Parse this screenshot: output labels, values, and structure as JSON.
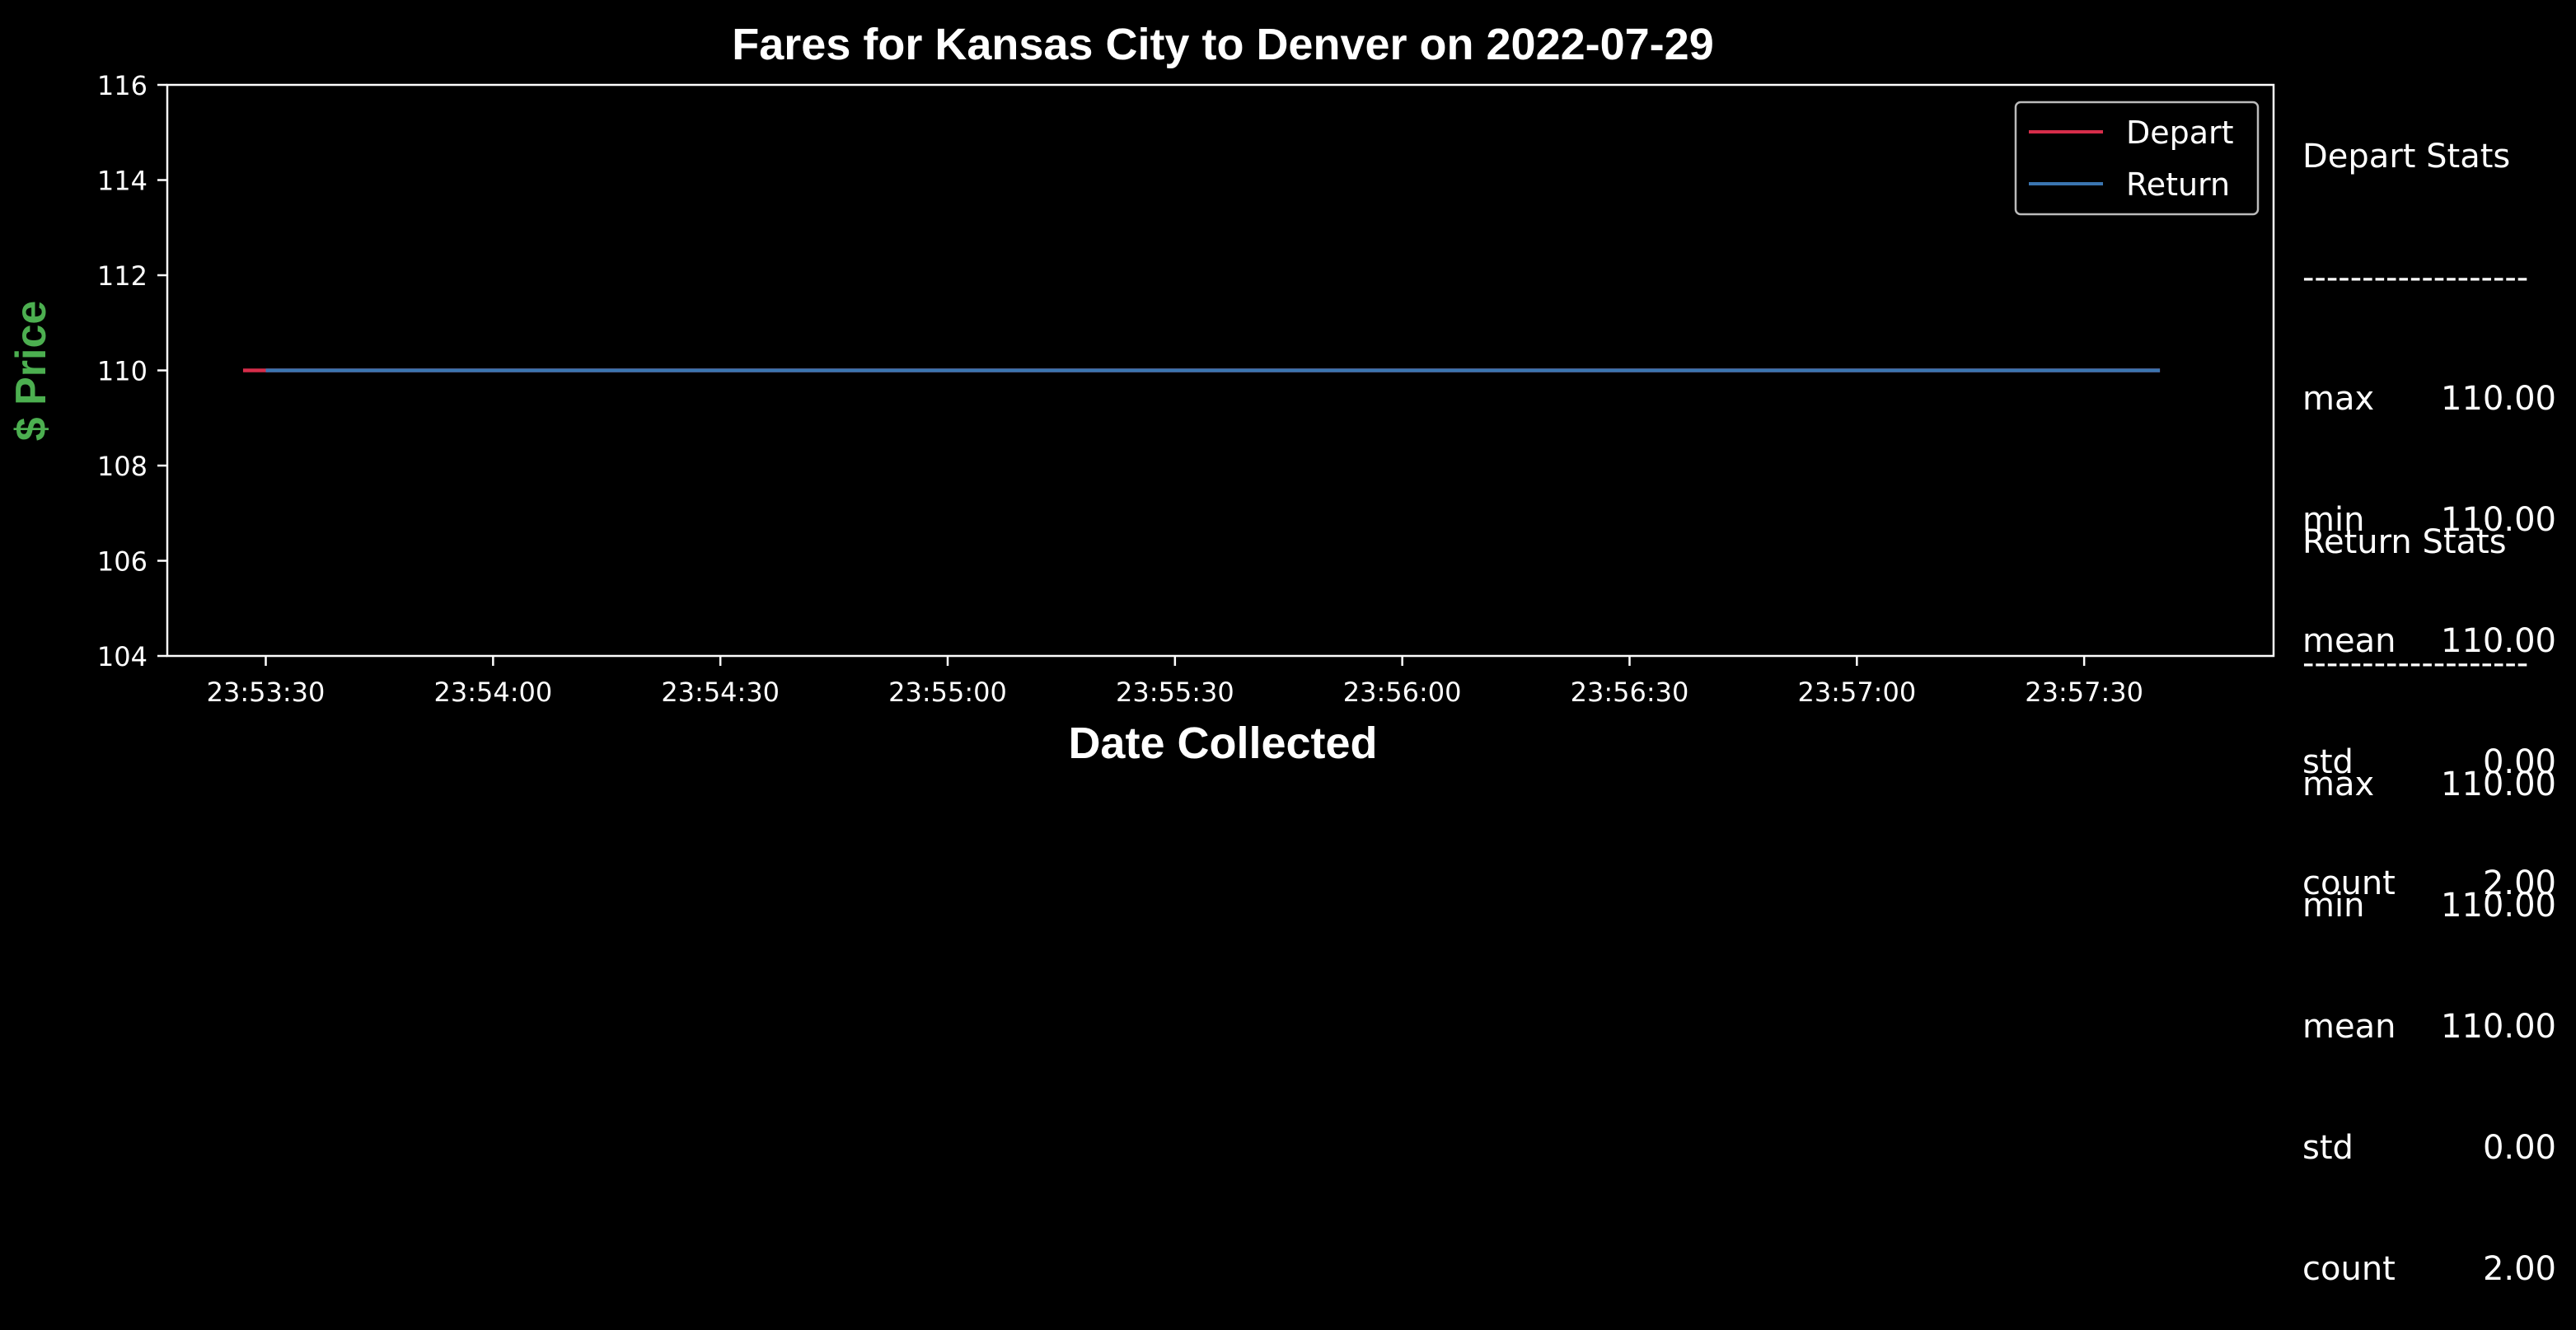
{
  "chart_data": {
    "type": "line",
    "title": "Fares for Kansas City to Denver on 2022-07-29",
    "xlabel": "Date Collected",
    "ylabel": "$ Price",
    "ylim": [
      104,
      116
    ],
    "yticks": [
      "104",
      "106",
      "108",
      "110",
      "112",
      "114",
      "116"
    ],
    "xlim": [
      "23:53:17",
      "23:57:55"
    ],
    "xticks": [
      "23:53:30",
      "23:54:00",
      "23:54:30",
      "23:55:00",
      "23:55:30",
      "23:56:00",
      "23:56:30",
      "23:57:00",
      "23:57:30"
    ],
    "legend_position": "top-right",
    "grid": false,
    "series": [
      {
        "name": "Depart",
        "color": "#d62d4a",
        "points": [
          {
            "x": "23:53:27",
            "y": 110
          },
          {
            "x": "23:57:40",
            "y": 110
          }
        ]
      },
      {
        "name": "Return",
        "color": "#3a75b0",
        "points": [
          {
            "x": "23:53:30",
            "y": 110
          },
          {
            "x": "23:57:40",
            "y": 110
          }
        ]
      }
    ]
  },
  "colors": {
    "background": "#000000",
    "ylabel": "#4caf50",
    "text": "#ffffff"
  },
  "depart_stats": {
    "title": "Depart Stats",
    "divider": "-------------------",
    "rows": [
      {
        "key": "max",
        "value": "110.00"
      },
      {
        "key": "min",
        "value": "110.00"
      },
      {
        "key": "mean",
        "value": "110.00"
      },
      {
        "key": "std",
        "value": "0.00"
      },
      {
        "key": "count",
        "value": "2.00"
      }
    ]
  },
  "return_stats": {
    "title": "Return Stats",
    "divider": "-------------------",
    "rows": [
      {
        "key": "max",
        "value": "110.00"
      },
      {
        "key": "min",
        "value": "110.00"
      },
      {
        "key": "mean",
        "value": "110.00"
      },
      {
        "key": "std",
        "value": "0.00"
      },
      {
        "key": "count",
        "value": "2.00"
      }
    ]
  }
}
